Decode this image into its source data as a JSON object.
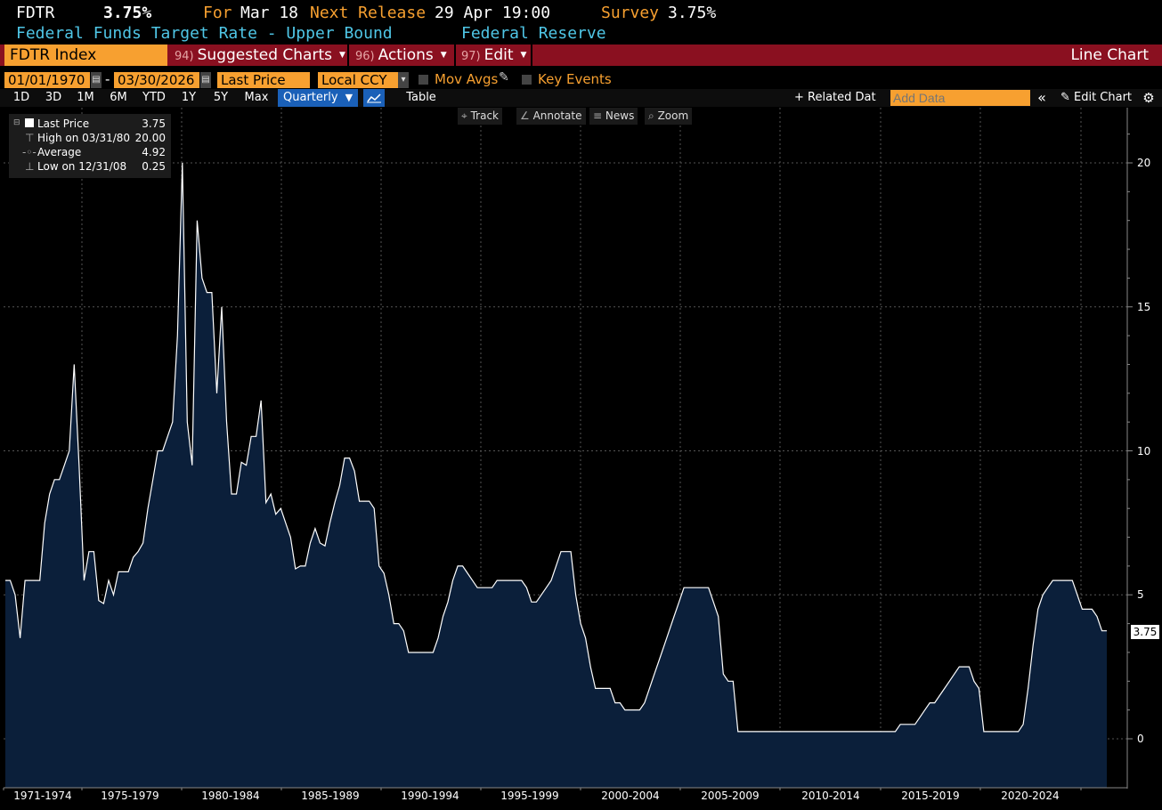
{
  "header": {
    "ticker": "FDTR",
    "value": "3.75%",
    "for_label": "For",
    "for_date": "Mar 18",
    "next_release_label": "Next Release",
    "next_release_value": "29 Apr 19:00",
    "survey_label": "Survey",
    "survey_value": "3.75%",
    "description": "Federal Funds Target Rate - Upper Bound",
    "source": "Federal Reserve"
  },
  "menubar": {
    "security": "FDTR Index",
    "suggested_num": "94)",
    "suggested_label": "Suggested Charts",
    "actions_num": "96)",
    "actions_label": "Actions",
    "edit_num": "97)",
    "edit_label": "Edit",
    "chart_type": "Line Chart"
  },
  "settings": {
    "start_date": "01/01/1970",
    "end_date": "03/30/2026",
    "date_sep": "-",
    "field": "Last Price",
    "currency": "Local CCY",
    "mov_avgs": "Mov Avgs",
    "key_events": "Key Events"
  },
  "ranges": {
    "items": [
      "1D",
      "3D",
      "1M",
      "6M",
      "YTD",
      "1Y",
      "5Y",
      "Max"
    ],
    "frequency": "Quarterly",
    "table": "Table",
    "related": "+ Related Dat",
    "add_data_placeholder": "Add Data",
    "edit_chart": "Edit Chart"
  },
  "chart_tools": {
    "track": "Track",
    "annotate": "Annotate",
    "news": "News",
    "zoom": "Zoom"
  },
  "legend": {
    "last_label": "Last Price",
    "last_value": "3.75",
    "high_label": "High on 03/31/80",
    "high_value": "20.00",
    "avg_label": "Average",
    "avg_value": "4.92",
    "low_label": "Low on 12/31/08",
    "low_value": "0.25"
  },
  "colors": {
    "orange": "#f7a030",
    "red_bar": "#8a1020",
    "cyan": "#4fc6e6",
    "fill": "#0b1f3a",
    "line": "#ffffff"
  },
  "chart_data": {
    "type": "area",
    "title": "",
    "xlabel": "",
    "ylabel": "",
    "y_ticks": [
      "0",
      "5",
      "10",
      "15",
      "20"
    ],
    "ylim": [
      -1,
      21
    ],
    "x_ticks": [
      "1971-1974",
      "1975-1979",
      "1980-1984",
      "1985-1989",
      "1990-1994",
      "1995-1999",
      "2000-2004",
      "2005-2009",
      "2010-2014",
      "2015-2019",
      "2020-2024"
    ],
    "last_value_label": "3.75",
    "grid": true,
    "series": [
      {
        "values_quarterly_from_1970Q1": [
          5.5,
          5.5,
          5,
          3.5,
          5.5,
          5.5,
          5.5,
          5.5,
          7.5,
          8.5,
          9,
          9,
          9.5,
          10,
          13,
          9.5,
          5.5,
          6.5,
          6.5,
          4.8,
          4.7,
          5.5,
          5,
          5.8,
          5.8,
          5.8,
          6.3,
          6.5,
          6.8,
          8,
          9,
          10,
          10,
          10.5,
          11,
          14,
          20,
          11,
          9.5,
          18,
          16,
          15.5,
          15.5,
          12,
          15,
          11,
          8.5,
          8.5,
          9.6,
          9.5,
          10.5,
          10.5,
          11.75,
          8.2,
          8.5,
          7.8,
          8,
          7.5,
          7,
          5.9,
          6,
          6,
          6.8,
          7.3,
          6.8,
          6.7,
          7.5,
          8.2,
          8.8,
          9.75,
          9.75,
          9.3,
          8.25,
          8.25,
          8.25,
          8,
          6,
          5.75,
          5,
          4,
          4,
          3.75,
          3,
          3,
          3,
          3,
          3,
          3,
          3.5,
          4.25,
          4.75,
          5.5,
          6,
          6,
          5.75,
          5.5,
          5.25,
          5.25,
          5.25,
          5.25,
          5.5,
          5.5,
          5.5,
          5.5,
          5.5,
          5.5,
          5.25,
          4.75,
          4.75,
          5,
          5.25,
          5.5,
          6,
          6.5,
          6.5,
          6.5,
          5,
          4,
          3.5,
          2.5,
          1.75,
          1.75,
          1.75,
          1.75,
          1.25,
          1.25,
          1,
          1,
          1,
          1,
          1.25,
          1.75,
          2.25,
          2.75,
          3.25,
          3.75,
          4.25,
          4.75,
          5.25,
          5.25,
          5.25,
          5.25,
          5.25,
          5.25,
          4.75,
          4.25,
          2.25,
          2,
          2,
          0.25,
          0.25,
          0.25,
          0.25,
          0.25,
          0.25,
          0.25,
          0.25,
          0.25,
          0.25,
          0.25,
          0.25,
          0.25,
          0.25,
          0.25,
          0.25,
          0.25,
          0.25,
          0.25,
          0.25,
          0.25,
          0.25,
          0.25,
          0.25,
          0.25,
          0.25,
          0.25,
          0.25,
          0.25,
          0.25,
          0.25,
          0.25,
          0.25,
          0.5,
          0.5,
          0.5,
          0.5,
          0.75,
          1,
          1.25,
          1.25,
          1.5,
          1.75,
          2,
          2.25,
          2.5,
          2.5,
          2.5,
          2,
          1.75,
          0.25,
          0.25,
          0.25,
          0.25,
          0.25,
          0.25,
          0.25,
          0.25,
          0.5,
          1.75,
          3.25,
          4.5,
          5,
          5.25,
          5.5,
          5.5,
          5.5,
          5.5,
          5.5,
          5,
          4.5,
          4.5,
          4.5,
          4.25,
          3.75,
          3.75
        ]
      }
    ]
  }
}
